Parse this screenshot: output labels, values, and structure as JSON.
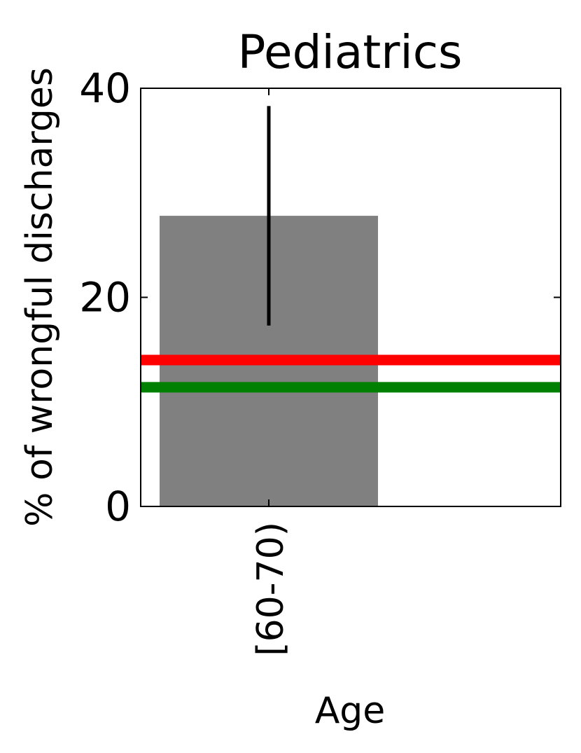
{
  "chart_data": {
    "type": "bar",
    "title": "Pediatrics",
    "xlabel": "Age",
    "ylabel": "% of wrongful discharges",
    "categories": [
      "[60-70)"
    ],
    "values": [
      27.8
    ],
    "error_bars": [
      {
        "low": 17.3,
        "high": 38.3
      }
    ],
    "ylim": [
      0,
      40
    ],
    "yticks": [
      0,
      20,
      40
    ],
    "grid": false,
    "reference_lines": [
      {
        "y": 14.0,
        "color": "#ff0000"
      },
      {
        "y": 11.4,
        "color": "#008000"
      }
    ],
    "bar_color": "#808080",
    "errorbar_color": "#000000"
  }
}
